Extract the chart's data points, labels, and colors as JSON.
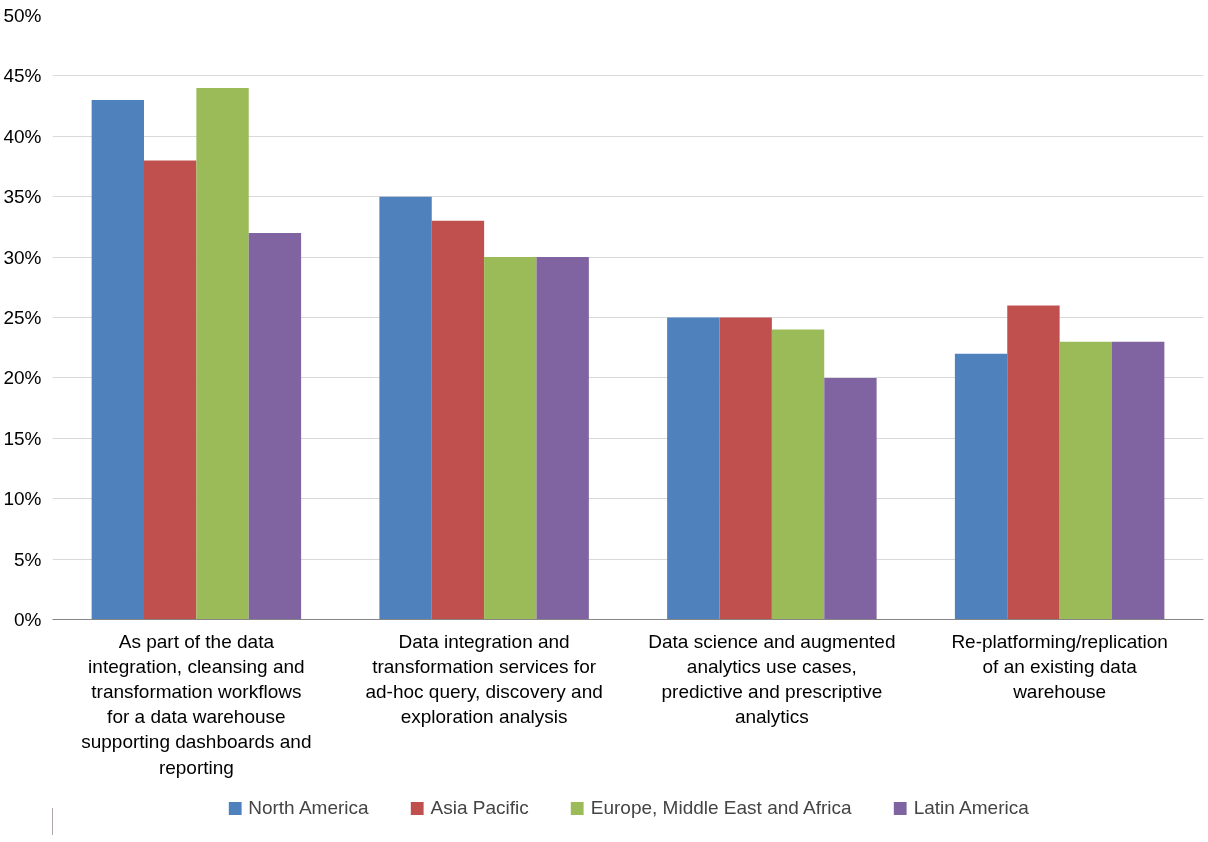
{
  "chart_data": {
    "type": "bar",
    "categories": [
      "As part of the data integration, cleansing and transformation workflows for a data warehouse supporting dashboards and reporting",
      "Data integration and transformation services for ad-hoc query, discovery and exploration analysis",
      "Data science and augmented analytics use cases, predictive and prescriptive analytics",
      "Re-platforming/replication of an existing data warehouse"
    ],
    "series": [
      {
        "name": "North America",
        "color": "#4f81bd",
        "values": [
          43,
          35,
          25,
          22
        ]
      },
      {
        "name": "Asia Pacific",
        "color": "#c0504d",
        "values": [
          38,
          33,
          25,
          26
        ]
      },
      {
        "name": "Europe, Middle East and Africa",
        "color": "#9bbb59",
        "values": [
          44,
          30,
          24,
          23
        ]
      },
      {
        "name": "Latin America",
        "color": "#8064a2",
        "values": [
          32,
          30,
          20,
          23
        ]
      }
    ],
    "ylim": [
      0,
      50
    ],
    "yticks": [
      {
        "value": 0,
        "label": "0%"
      },
      {
        "value": 5,
        "label": "5%"
      },
      {
        "value": 10,
        "label": "10%"
      },
      {
        "value": 15,
        "label": "15%"
      },
      {
        "value": 20,
        "label": "20%"
      },
      {
        "value": 25,
        "label": "25%"
      },
      {
        "value": 30,
        "label": "30%"
      },
      {
        "value": 35,
        "label": "35%"
      },
      {
        "value": 40,
        "label": "40%"
      },
      {
        "value": 45,
        "label": "45%"
      },
      {
        "value": 50,
        "label": "50%"
      }
    ],
    "grid": "y",
    "legend": "bottom"
  }
}
